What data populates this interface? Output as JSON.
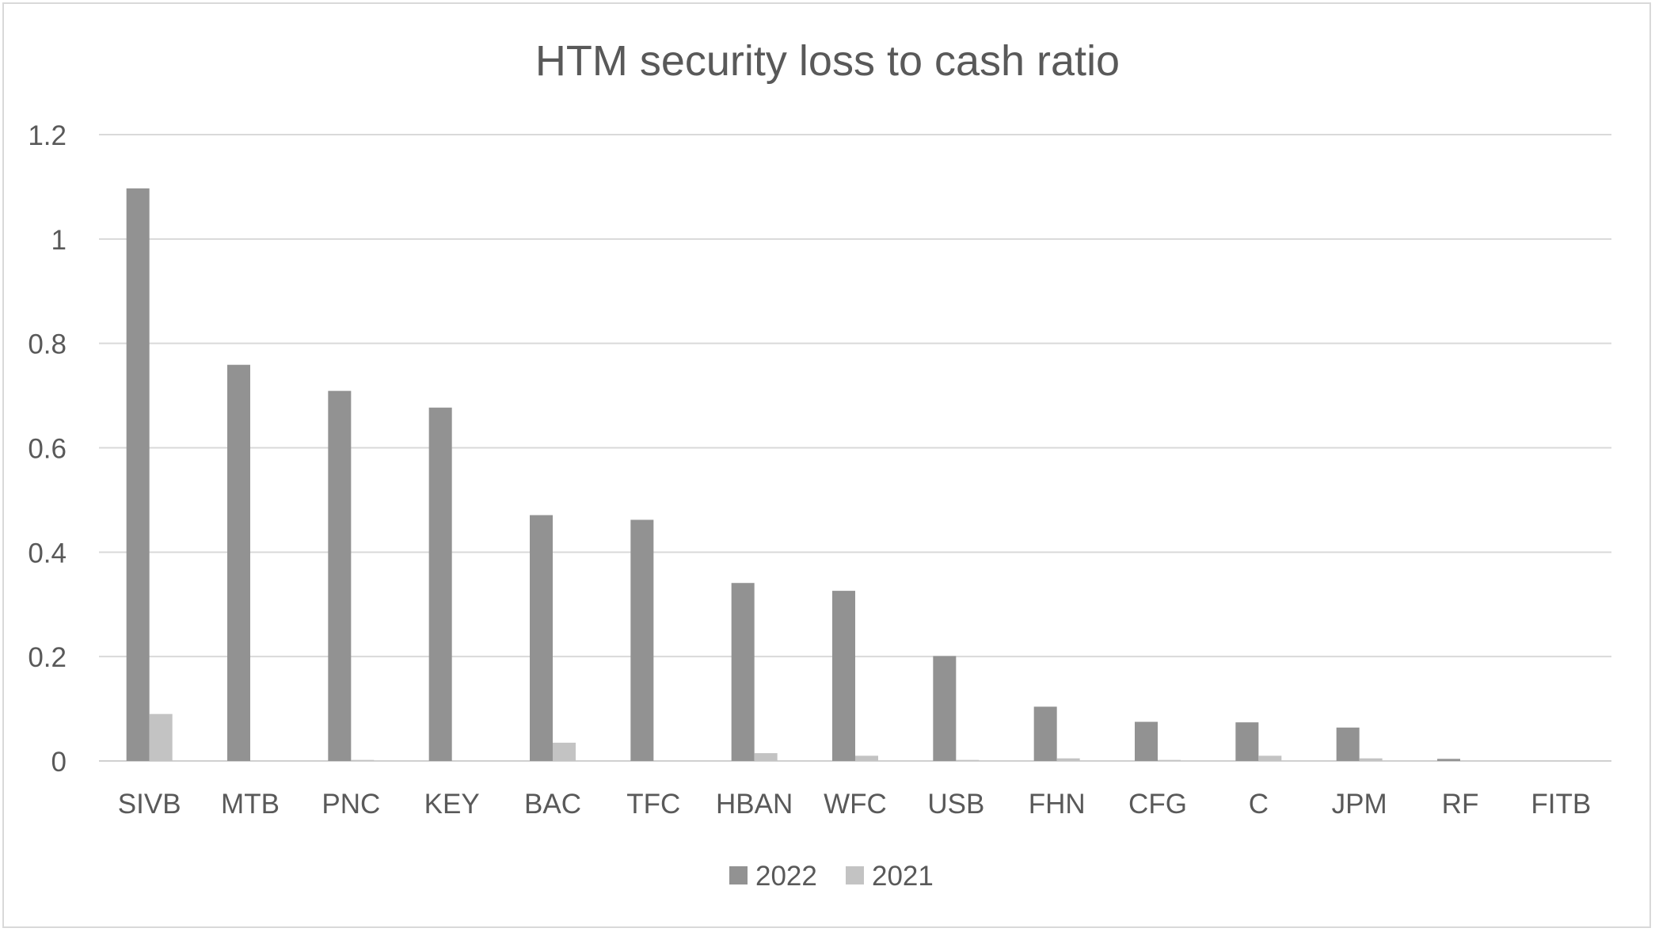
{
  "chart_data": {
    "type": "bar",
    "title": "HTM security loss to cash ratio",
    "xlabel": "",
    "ylabel": "",
    "ylim": [
      0,
      1.2
    ],
    "yticks": [
      "0",
      "0.2",
      "0.4",
      "0.6",
      "0.8",
      "1",
      "1.2"
    ],
    "grid": true,
    "legend_position": "bottom",
    "categories": [
      "SIVB",
      "MTB",
      "PNC",
      "KEY",
      "BAC",
      "TFC",
      "HBAN",
      "WFC",
      "USB",
      "FHN",
      "CFG",
      "C",
      "JPM",
      "RF",
      "FITB"
    ],
    "series": [
      {
        "name": "2022",
        "color": "#929292",
        "values": [
          1.097,
          0.759,
          0.709,
          0.677,
          0.471,
          0.462,
          0.341,
          0.326,
          0.201,
          0.104,
          0.075,
          0.074,
          0.064,
          0.004,
          0.0
        ]
      },
      {
        "name": "2021",
        "color": "#c3c3c3",
        "values": [
          0.09,
          0.0,
          0.002,
          0.0,
          0.035,
          0.0,
          0.015,
          0.01,
          0.002,
          0.005,
          0.002,
          0.01,
          0.005,
          0.0,
          0.0
        ]
      }
    ]
  }
}
